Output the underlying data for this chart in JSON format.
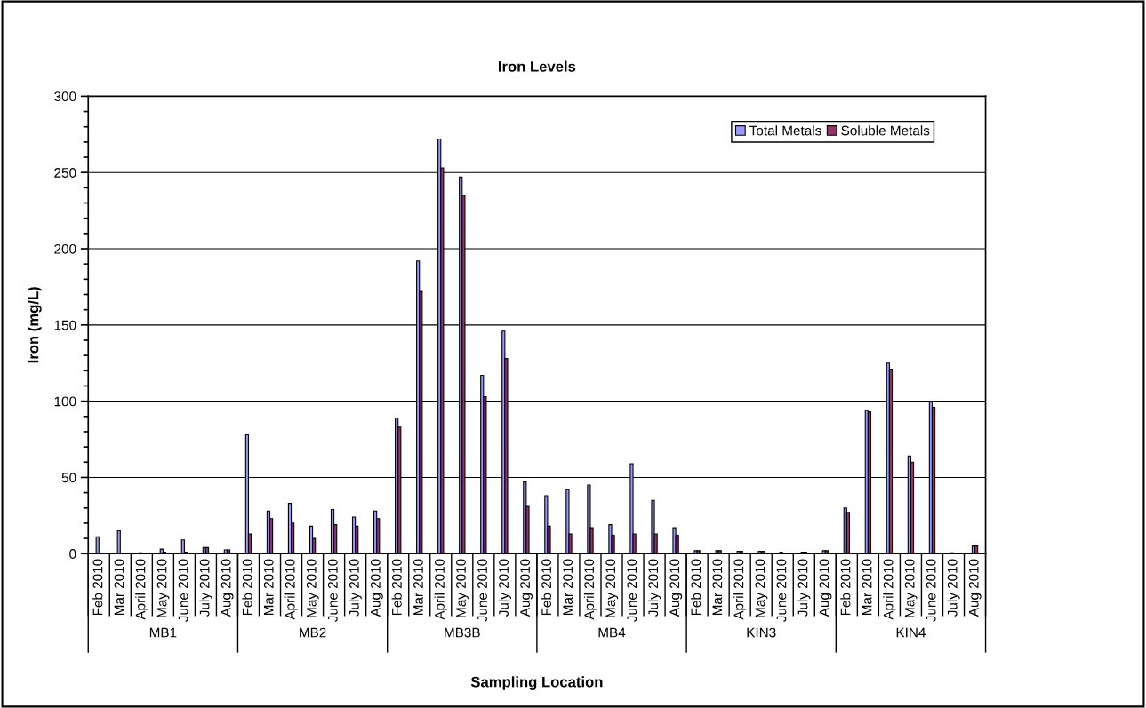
{
  "chart_data": {
    "type": "bar",
    "title": "Iron Levels",
    "xlabel": "Sampling Location",
    "ylabel": "Iron (mg/L)",
    "categories": [
      "Feb 2010",
      "Mar 2010",
      "April 2010",
      "May 2010",
      "June 2010",
      "July 2010",
      "Aug 2010",
      "Feb 2010",
      "Mar 2010",
      "April 2010",
      "May 2010",
      "June 2010",
      "July 2010",
      "Aug 2010",
      "Feb 2010",
      "Mar 2010",
      "April 2010",
      "May 2010",
      "June 2010",
      "July 2010",
      "Aug 2010",
      "Feb 2010",
      "Mar 2010",
      "April 2010",
      "May 2010",
      "June 2010",
      "July 2010",
      "Aug 2010",
      "Feb 2010",
      "Mar 2010",
      "April 2010",
      "May 2010",
      "June 2010",
      "July 2010",
      "Aug 2010",
      "Feb 2010",
      "Mar 2010",
      "April 2010",
      "May 2010",
      "June 2010",
      "July 2010",
      "Aug 2010"
    ],
    "annotations": [
      "MB1",
      "MB2",
      "MB3B",
      "MB4",
      "KIN3",
      "KIN4"
    ],
    "series": [
      {
        "name": "Total Metals",
        "color": "#9999ff",
        "values": [
          11,
          15,
          0.5,
          3,
          9,
          4,
          2.5,
          78,
          28,
          33,
          18,
          29,
          24,
          28,
          89,
          192,
          272,
          247,
          117,
          146,
          47,
          38,
          42,
          45,
          19,
          59,
          35,
          17,
          2,
          2,
          1.5,
          1.5,
          1,
          1,
          2,
          30,
          94,
          125,
          64,
          100,
          0.5,
          5
        ]
      },
      {
        "name": "Soluble Metals",
        "color": "#993366",
        "values": [
          null,
          null,
          null,
          1,
          1,
          4,
          2.5,
          13,
          23,
          20,
          10,
          19,
          18,
          23,
          83,
          172,
          253,
          235,
          103,
          128,
          31,
          18,
          13,
          17,
          12,
          13,
          13,
          12,
          2,
          2,
          1.5,
          1.5,
          null,
          1,
          2,
          27,
          93,
          121,
          60,
          96,
          null,
          5
        ]
      }
    ],
    "ylim": [
      0,
      300
    ],
    "yticks": [
      0,
      50,
      100,
      150,
      200,
      250,
      300
    ],
    "grid": "y",
    "legend": "top right"
  }
}
